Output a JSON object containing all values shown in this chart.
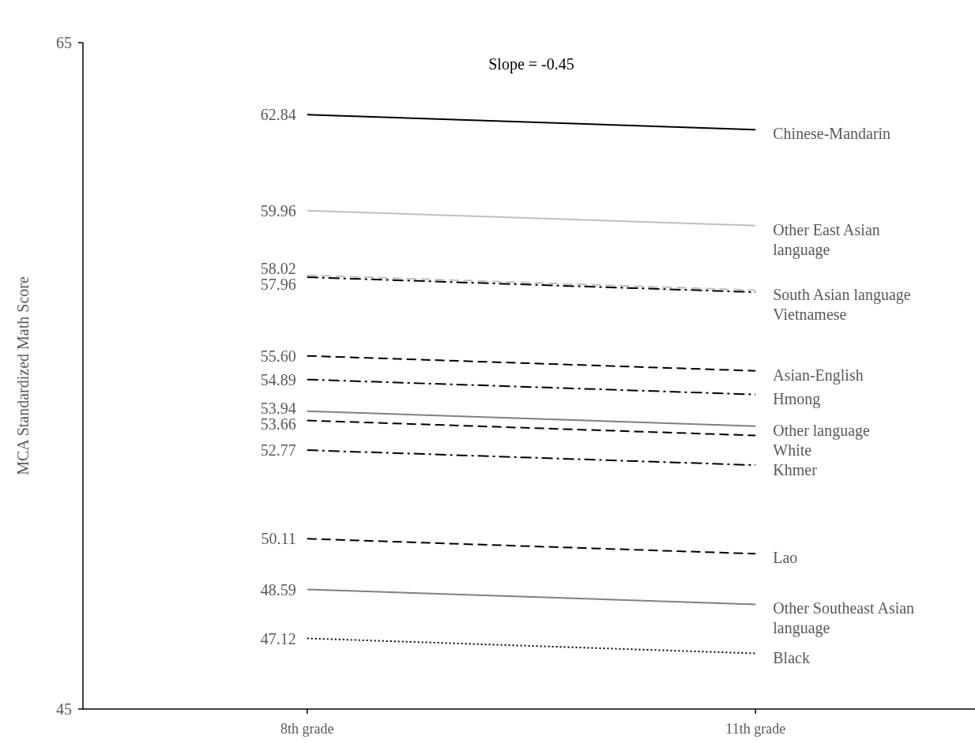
{
  "chart_data": {
    "type": "line",
    "ylabel": "MCA Standardized Math Score",
    "categories": [
      "8th grade",
      "11th grade"
    ],
    "ylim": [
      45,
      65
    ],
    "yticks": [
      45,
      65
    ],
    "grid": false,
    "marker": "none",
    "annotations": [
      "Slope = -0.45"
    ],
    "series": [
      {
        "name": "Chinese-Mandarin",
        "color": "#000000",
        "line_style": "solid",
        "values": [
          62.84,
          62.39
        ],
        "value_labels": [
          "62.84",
          null
        ]
      },
      {
        "name": "Other East Asian language",
        "color": "#bfbfbf",
        "line_style": "solid",
        "values": [
          59.96,
          59.51
        ],
        "value_labels": [
          "59.96",
          null
        ]
      },
      {
        "name": "South Asian language",
        "color": "#bfbfbf",
        "line_style": "dashed",
        "values": [
          58.02,
          57.57
        ],
        "value_labels": [
          "58.02",
          null
        ]
      },
      {
        "name": "Vietnamese",
        "color": "#000000",
        "line_style": "dashdot",
        "values": [
          57.96,
          57.51
        ],
        "value_labels": [
          "57.96",
          null
        ]
      },
      {
        "name": "Asian-English",
        "color": "#000000",
        "line_style": "dashed",
        "values": [
          55.6,
          55.15
        ],
        "value_labels": [
          "55.60",
          null
        ]
      },
      {
        "name": "Hmong",
        "color": "#000000",
        "line_style": "dashdot",
        "values": [
          54.89,
          54.44
        ],
        "value_labels": [
          "54.89",
          null
        ]
      },
      {
        "name": "Other language",
        "color": "#808080",
        "line_style": "solid",
        "values": [
          53.94,
          53.49
        ],
        "value_labels": [
          "53.94",
          null
        ]
      },
      {
        "name": "White",
        "color": "#000000",
        "line_style": "dashed",
        "values": [
          53.66,
          53.21
        ],
        "value_labels": [
          "53.66",
          null
        ]
      },
      {
        "name": "Khmer",
        "color": "#000000",
        "line_style": "dashdot",
        "values": [
          52.77,
          52.32
        ],
        "value_labels": [
          "52.77",
          null
        ]
      },
      {
        "name": "Lao",
        "color": "#000000",
        "line_style": "dashed",
        "values": [
          50.11,
          49.66
        ],
        "value_labels": [
          "50.11",
          null
        ]
      },
      {
        "name": "Other Southeast Asian language",
        "color": "#808080",
        "line_style": "solid",
        "values": [
          48.59,
          48.14
        ],
        "value_labels": [
          "48.59",
          null
        ]
      },
      {
        "name": "Black",
        "color": "#000000",
        "line_style": "dotted",
        "values": [
          47.12,
          46.67
        ],
        "value_labels": [
          "47.12",
          null
        ]
      }
    ]
  }
}
